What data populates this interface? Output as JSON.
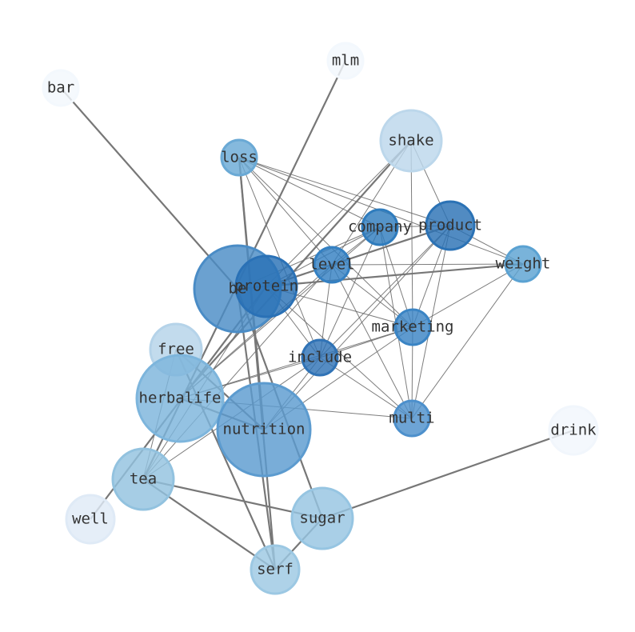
{
  "nodes": [
    {
      "label": "bar"
    },
    {
      "label": "mlm"
    },
    {
      "label": "shake"
    },
    {
      "label": "loss"
    },
    {
      "label": "company"
    },
    {
      "label": "product"
    },
    {
      "label": "level"
    },
    {
      "label": "weight"
    },
    {
      "label": "be"
    },
    {
      "label": "protein"
    },
    {
      "label": "marketing"
    },
    {
      "label": "free"
    },
    {
      "label": "include"
    },
    {
      "label": "herbalife"
    },
    {
      "label": "nutrition"
    },
    {
      "label": "multi"
    },
    {
      "label": "drink"
    },
    {
      "label": "tea"
    },
    {
      "label": "well"
    },
    {
      "label": "sugar"
    },
    {
      "label": "serf"
    }
  ]
}
